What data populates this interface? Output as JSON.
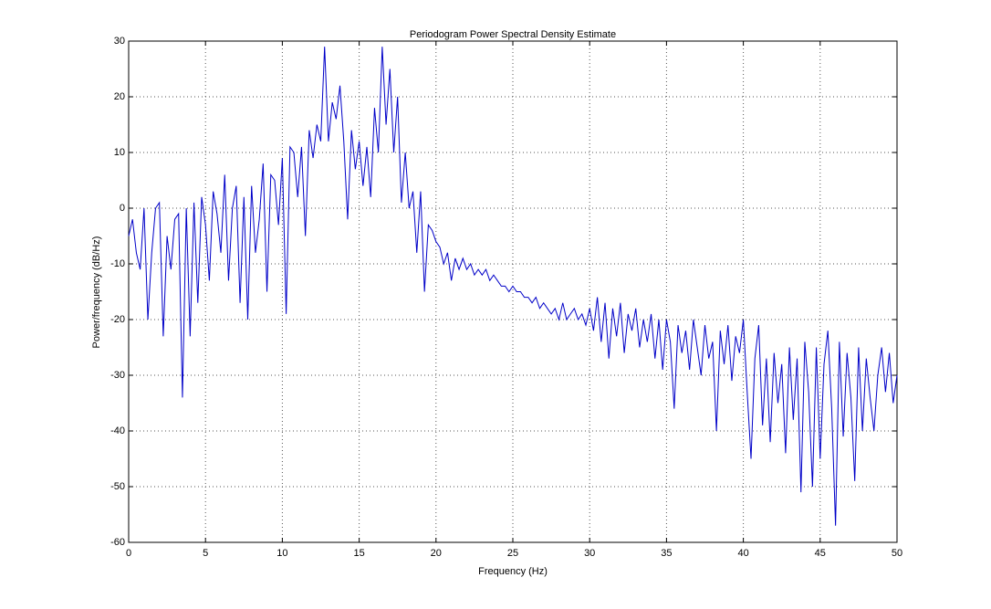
{
  "chart_data": {
    "type": "line",
    "title": "Periodogram Power Spectral Density Estimate",
    "x_label": "Frequency (Hz)",
    "y_label": "Power/frequency (dB/Hz)",
    "x": [
      0,
      0.25,
      0.5,
      0.75,
      1,
      1.25,
      1.5,
      1.75,
      2,
      2.25,
      2.5,
      2.75,
      3,
      3.25,
      3.5,
      3.75,
      4,
      4.25,
      4.5,
      4.75,
      5,
      5.25,
      5.5,
      5.75,
      6,
      6.25,
      6.5,
      6.75,
      7,
      7.25,
      7.5,
      7.75,
      8,
      8.25,
      8.5,
      8.75,
      9,
      9.25,
      9.5,
      9.75,
      10,
      10.25,
      10.5,
      10.75,
      11,
      11.25,
      11.5,
      11.75,
      12,
      12.25,
      12.5,
      12.75,
      13,
      13.25,
      13.5,
      13.75,
      14,
      14.25,
      14.5,
      14.75,
      15,
      15.25,
      15.5,
      15.75,
      16,
      16.25,
      16.5,
      16.75,
      17,
      17.25,
      17.5,
      17.75,
      18,
      18.25,
      18.5,
      18.75,
      19,
      19.25,
      19.5,
      19.75,
      20,
      20.25,
      20.5,
      20.75,
      21,
      21.25,
      21.5,
      21.75,
      22,
      22.25,
      22.5,
      22.75,
      23,
      23.25,
      23.5,
      23.75,
      24,
      24.25,
      24.5,
      24.75,
      25,
      25.25,
      25.5,
      25.75,
      26,
      26.25,
      26.5,
      26.75,
      27,
      27.25,
      27.5,
      27.75,
      28,
      28.25,
      28.5,
      28.75,
      29,
      29.25,
      29.5,
      29.75,
      30,
      30.25,
      30.5,
      30.75,
      31,
      31.25,
      31.5,
      31.75,
      32,
      32.25,
      32.5,
      32.75,
      33,
      33.25,
      33.5,
      33.75,
      34,
      34.25,
      34.5,
      34.75,
      35,
      35.25,
      35.5,
      35.75,
      36,
      36.25,
      36.5,
      36.75,
      37,
      37.25,
      37.5,
      37.75,
      38,
      38.25,
      38.5,
      38.75,
      39,
      39.25,
      39.5,
      39.75,
      40,
      40.25,
      40.5,
      40.75,
      41,
      41.25,
      41.5,
      41.75,
      42,
      42.25,
      42.5,
      42.75,
      43,
      43.25,
      43.5,
      43.75,
      44,
      44.25,
      44.5,
      44.75,
      45,
      45.25,
      45.5,
      45.75,
      46,
      46.25,
      46.5,
      46.75,
      47,
      47.25,
      47.5,
      47.75,
      48,
      48.25,
      48.5,
      48.75,
      49,
      49.25,
      49.5,
      49.75,
      50
    ],
    "series": [
      {
        "color": "#0000c8",
        "values": [
          -5,
          -2,
          -8,
          -11,
          0,
          -20,
          -8,
          0,
          1,
          -23,
          -5,
          -11,
          -2,
          -1,
          -34,
          0,
          -23,
          1,
          -17,
          2,
          -3,
          -13,
          3,
          -1,
          -8,
          6,
          -13,
          0,
          4,
          -17,
          2,
          -20,
          4,
          -8,
          -2,
          8,
          -15,
          6,
          5,
          -3,
          9,
          -19,
          11,
          10,
          2,
          11,
          -5,
          14,
          9,
          15,
          12,
          29,
          12,
          19,
          16,
          22,
          12,
          -2,
          14,
          7,
          12,
          4,
          11,
          2,
          18,
          10,
          29,
          15,
          25,
          10,
          20,
          1,
          10,
          0,
          3,
          -8,
          3,
          -15,
          -3,
          -4,
          -6,
          -7,
          -10,
          -8,
          -13,
          -9,
          -11,
          -9,
          -11,
          -10,
          -12,
          -11,
          -12,
          -11,
          -13,
          -12,
          -13,
          -14,
          -14,
          -15,
          -14,
          -15,
          -15,
          -16,
          -16,
          -17,
          -16,
          -18,
          -17,
          -18,
          -19,
          -18,
          -20,
          -17,
          -20,
          -19,
          -18,
          -20,
          -19,
          -21,
          -18,
          -22,
          -16,
          -24,
          -17,
          -27,
          -18,
          -23,
          -17,
          -26,
          -19,
          -22,
          -18,
          -25,
          -20,
          -24,
          -19,
          -27,
          -20,
          -29,
          -20,
          -24,
          -36,
          -21,
          -26,
          -22,
          -29,
          -20,
          -25,
          -30,
          -21,
          -27,
          -24,
          -40,
          -22,
          -28,
          -21,
          -31,
          -23,
          -26,
          -20,
          -33,
          -45,
          -27,
          -21,
          -39,
          -27,
          -42,
          -26,
          -35,
          -28,
          -44,
          -25,
          -38,
          -27,
          -51,
          -24,
          -33,
          -50,
          -25,
          -45,
          -28,
          -22,
          -36,
          -57,
          -24,
          -41,
          -26,
          -34,
          -49,
          -25,
          -40,
          -27,
          -34,
          -40,
          -30,
          -25,
          -33,
          -26,
          -35,
          -30
        ]
      }
    ],
    "xlim": [
      0,
      50
    ],
    "ylim": [
      -60,
      30
    ],
    "xticks": [
      0,
      5,
      10,
      15,
      20,
      25,
      30,
      35,
      40,
      45,
      50
    ],
    "yticks": [
      -60,
      -50,
      -40,
      -30,
      -20,
      -10,
      0,
      10,
      20,
      30
    ],
    "grid": true
  }
}
